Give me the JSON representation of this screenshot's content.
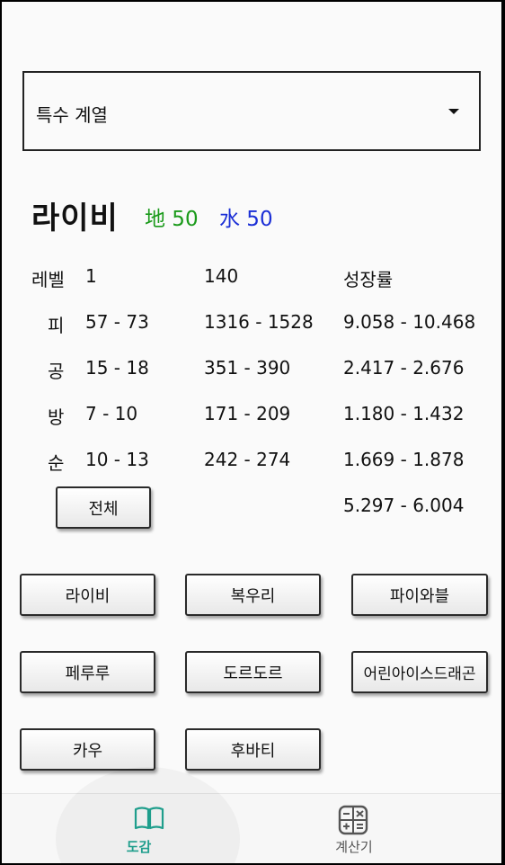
{
  "dropdown": {
    "selected": "특수 계열"
  },
  "character": {
    "name": "라이비",
    "element1": {
      "label": "地 50",
      "color": "#1a9a1a"
    },
    "element2": {
      "label": "水 50",
      "color": "#1b2fd6"
    }
  },
  "stats": {
    "header": {
      "label": "레벨",
      "level1": "1",
      "level140": "140",
      "growth": "성장률"
    },
    "rows": [
      {
        "label": "피",
        "lv1": "57 - 73",
        "lv140": "1316 - 1528",
        "growth": "9.058 - 10.468"
      },
      {
        "label": "공",
        "lv1": "15 - 18",
        "lv140": "351 - 390",
        "growth": "2.417 - 2.676"
      },
      {
        "label": "방",
        "lv1": "7 - 10",
        "lv140": "171 - 209",
        "growth": "1.180 - 1.432"
      },
      {
        "label": "순",
        "lv1": "10 - 13",
        "lv140": "242 - 274",
        "growth": "1.669 - 1.878"
      }
    ],
    "total_button": "전체",
    "total_growth": "5.297 - 6.004"
  },
  "characters": [
    "라이비",
    "복우리",
    "파이와블",
    "페루루",
    "도르도르",
    "어린아이스드래곤",
    "카우",
    "후바티"
  ],
  "nav": {
    "items": [
      {
        "label": "도감",
        "icon": "book-icon",
        "active": true,
        "color": "#1f9e8c"
      },
      {
        "label": "계산기",
        "icon": "calculator-icon",
        "active": false,
        "color": "#555555"
      }
    ]
  }
}
